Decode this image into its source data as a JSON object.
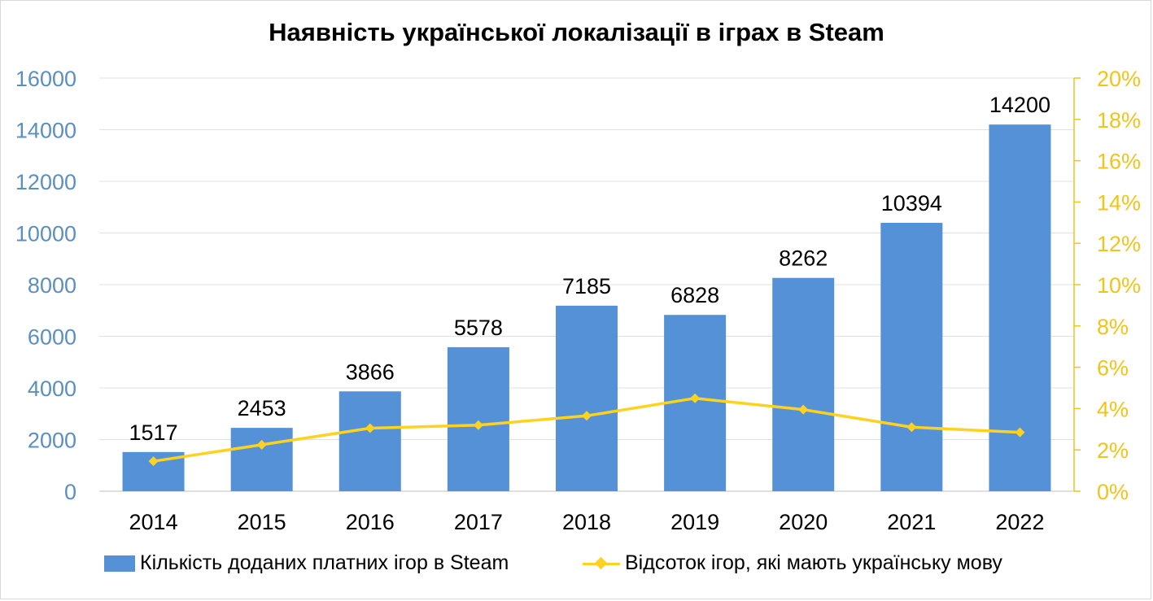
{
  "chart_data": {
    "type": "bar",
    "title": "Наявність української локалізації в іграх в Steam",
    "categories": [
      "2014",
      "2015",
      "2016",
      "2017",
      "2018",
      "2019",
      "2020",
      "2021",
      "2022"
    ],
    "series": [
      {
        "name": "Кількість доданих платних ігор в Steam",
        "type": "bar",
        "axis": "left",
        "color": "#5591D6",
        "values": [
          1517,
          2453,
          3866,
          5578,
          7185,
          6828,
          8262,
          10394,
          14200
        ],
        "data_labels": [
          "1517",
          "2453",
          "3866",
          "5578",
          "7185",
          "6828",
          "8262",
          "10394",
          "14200"
        ]
      },
      {
        "name": "Відсоток ігор, які мають українську мову",
        "type": "line",
        "axis": "right",
        "color": "#FFD21F",
        "values": [
          1.45,
          2.25,
          3.05,
          3.2,
          3.65,
          4.5,
          3.95,
          3.1,
          2.85
        ]
      }
    ],
    "y_left": {
      "ylim": [
        0,
        16000
      ],
      "ticks": [
        0,
        2000,
        4000,
        6000,
        8000,
        10000,
        12000,
        14000,
        16000
      ],
      "tick_labels": [
        "0",
        "2000",
        "4000",
        "6000",
        "8000",
        "10000",
        "12000",
        "14000",
        "16000"
      ],
      "color": "#5B8FC0"
    },
    "y_right": {
      "ylim": [
        0,
        20
      ],
      "ticks": [
        0,
        2,
        4,
        6,
        8,
        10,
        12,
        14,
        16,
        18,
        20
      ],
      "tick_labels": [
        "0%",
        "2%",
        "4%",
        "6%",
        "8%",
        "10%",
        "12%",
        "14%",
        "16%",
        "18%",
        "20%"
      ],
      "color": "#F0C419"
    },
    "grid": true,
    "legend_position": "bottom"
  }
}
